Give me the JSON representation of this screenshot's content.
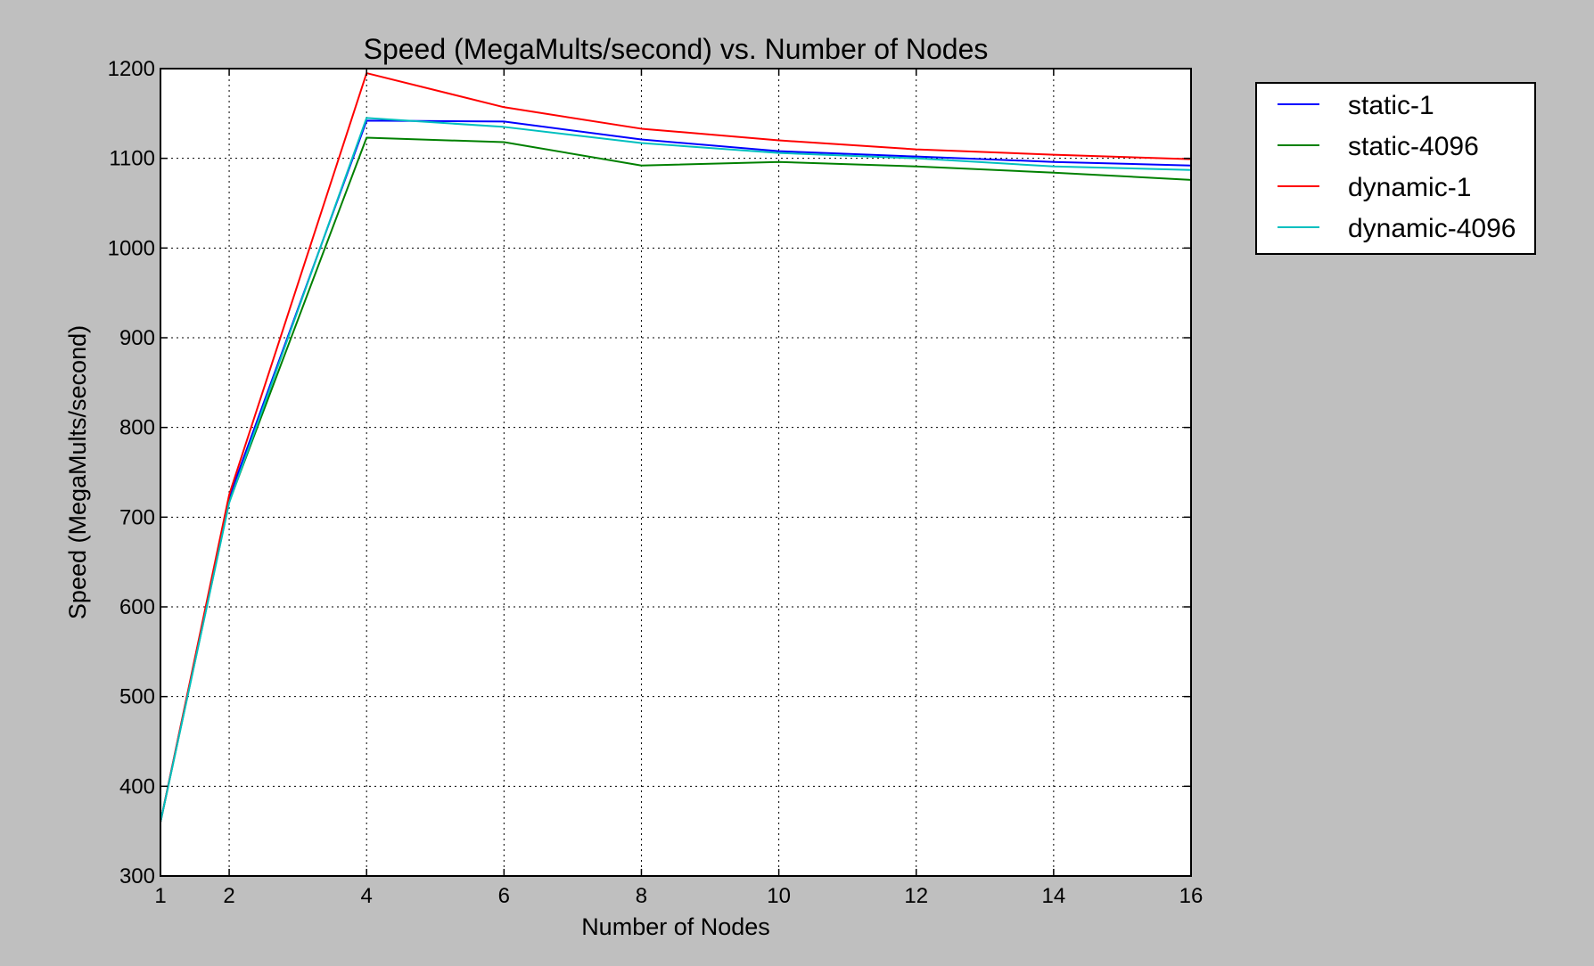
{
  "chart_data": {
    "type": "line",
    "title": "Speed (MegaMults/second) vs. Number of Nodes",
    "xlabel": "Number of Nodes",
    "ylabel": "Speed (MegaMults/second)",
    "x": [
      1,
      2,
      4,
      6,
      8,
      10,
      12,
      14,
      16
    ],
    "xticks": [
      1,
      2,
      4,
      6,
      8,
      10,
      12,
      14,
      16
    ],
    "yticks": [
      300,
      400,
      500,
      600,
      700,
      800,
      900,
      1000,
      1100,
      1200
    ],
    "xlim": [
      1,
      16
    ],
    "ylim": [
      300,
      1200
    ],
    "grid": true,
    "legend_position": "outside-top-right",
    "series": [
      {
        "name": "static-1",
        "color": "#0000ff",
        "values": [
          360,
          722,
          1142,
          1141,
          1121,
          1108,
          1102,
          1096,
          1092
        ]
      },
      {
        "name": "static-4096",
        "color": "#008000",
        "values": [
          360,
          717,
          1123,
          1118,
          1092,
          1096,
          1091,
          1084,
          1076
        ]
      },
      {
        "name": "dynamic-1",
        "color": "#ff0000",
        "values": [
          360,
          725,
          1195,
          1157,
          1133,
          1120,
          1110,
          1104,
          1099
        ]
      },
      {
        "name": "dynamic-4096",
        "color": "#00bfbf",
        "values": [
          360,
          716,
          1145,
          1135,
          1117,
          1106,
          1100,
          1091,
          1087
        ]
      }
    ]
  }
}
